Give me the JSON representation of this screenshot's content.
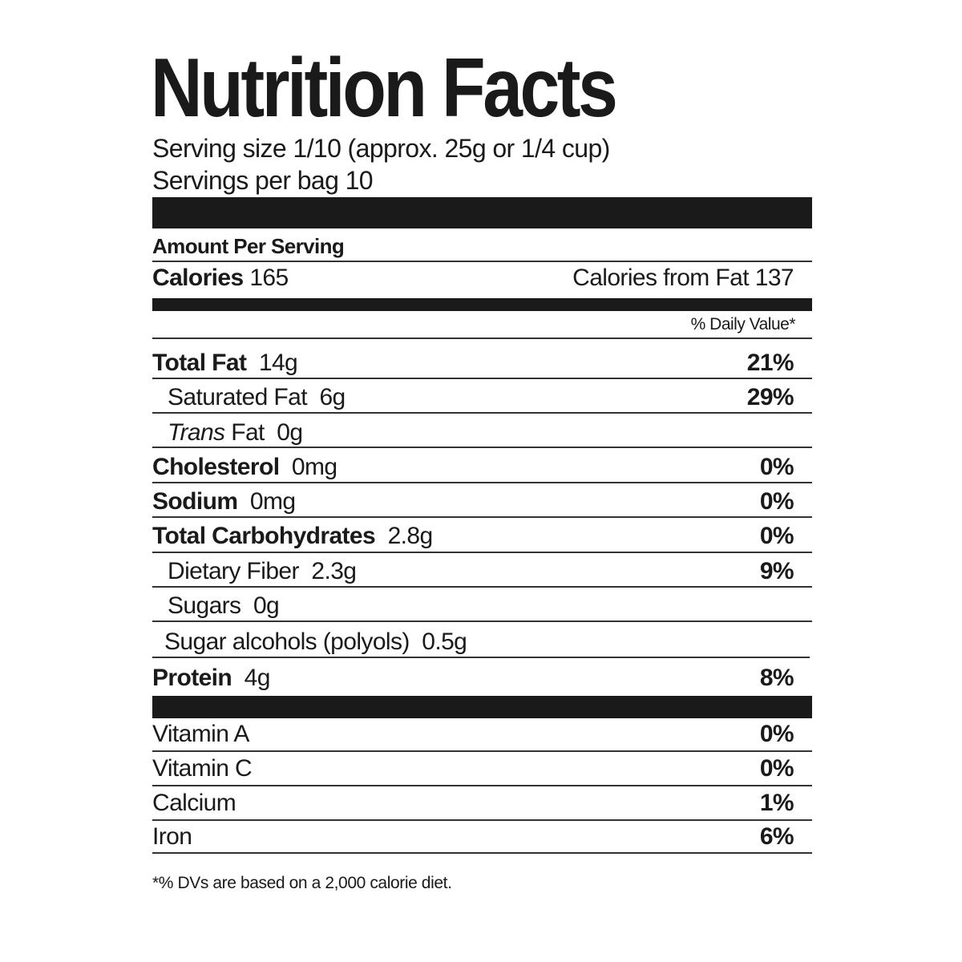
{
  "title": "Nutrition Facts",
  "serving_size": "Serving size 1/10 (approx. 25g or 1/4 cup)",
  "servings_per": "Servings per bag 10",
  "amount_per_serving": "Amount Per Serving",
  "calories": {
    "label": "Calories",
    "value": "165",
    "from_fat_label": "Calories from Fat",
    "from_fat_value": "137"
  },
  "daily_value_header": "% Daily Value*",
  "nutrients": [
    {
      "label": "Total Fat",
      "amount": "14g",
      "dv": "21%",
      "bold": true
    },
    {
      "label": "Saturated Fat",
      "amount": "6g",
      "dv": "29%",
      "indent": true
    },
    {
      "label": "Trans",
      "label_suffix": "Fat",
      "amount": "0g",
      "dv": "",
      "indent": true,
      "italic": true
    },
    {
      "label": "Cholesterol",
      "amount": "0mg",
      "dv": "0%",
      "bold": true
    },
    {
      "label": "Sodium",
      "amount": "0mg",
      "dv": "0%",
      "bold": true
    },
    {
      "label": "Total Carbohydrates",
      "amount": "2.8g",
      "dv": "0%",
      "bold": true
    },
    {
      "label": "Dietary Fiber",
      "amount": "2.3g",
      "dv": "9%",
      "indent": true
    },
    {
      "label": "Sugars",
      "amount": "0g",
      "dv": "",
      "indent": true
    },
    {
      "label": "Sugar alcohols (polyols)",
      "amount": "0.5g",
      "dv": "",
      "indent": true
    },
    {
      "label": "Protein",
      "amount": "4g",
      "dv": "8%",
      "bold": true
    }
  ],
  "vitamins": [
    {
      "label": "Vitamin A",
      "dv": "0%"
    },
    {
      "label": "Vitamin C",
      "dv": "0%"
    },
    {
      "label": "Calcium",
      "dv": "1%"
    },
    {
      "label": "Iron",
      "dv": "6%"
    }
  ],
  "footnote": "*% DVs are based on a 2,000 calorie diet."
}
